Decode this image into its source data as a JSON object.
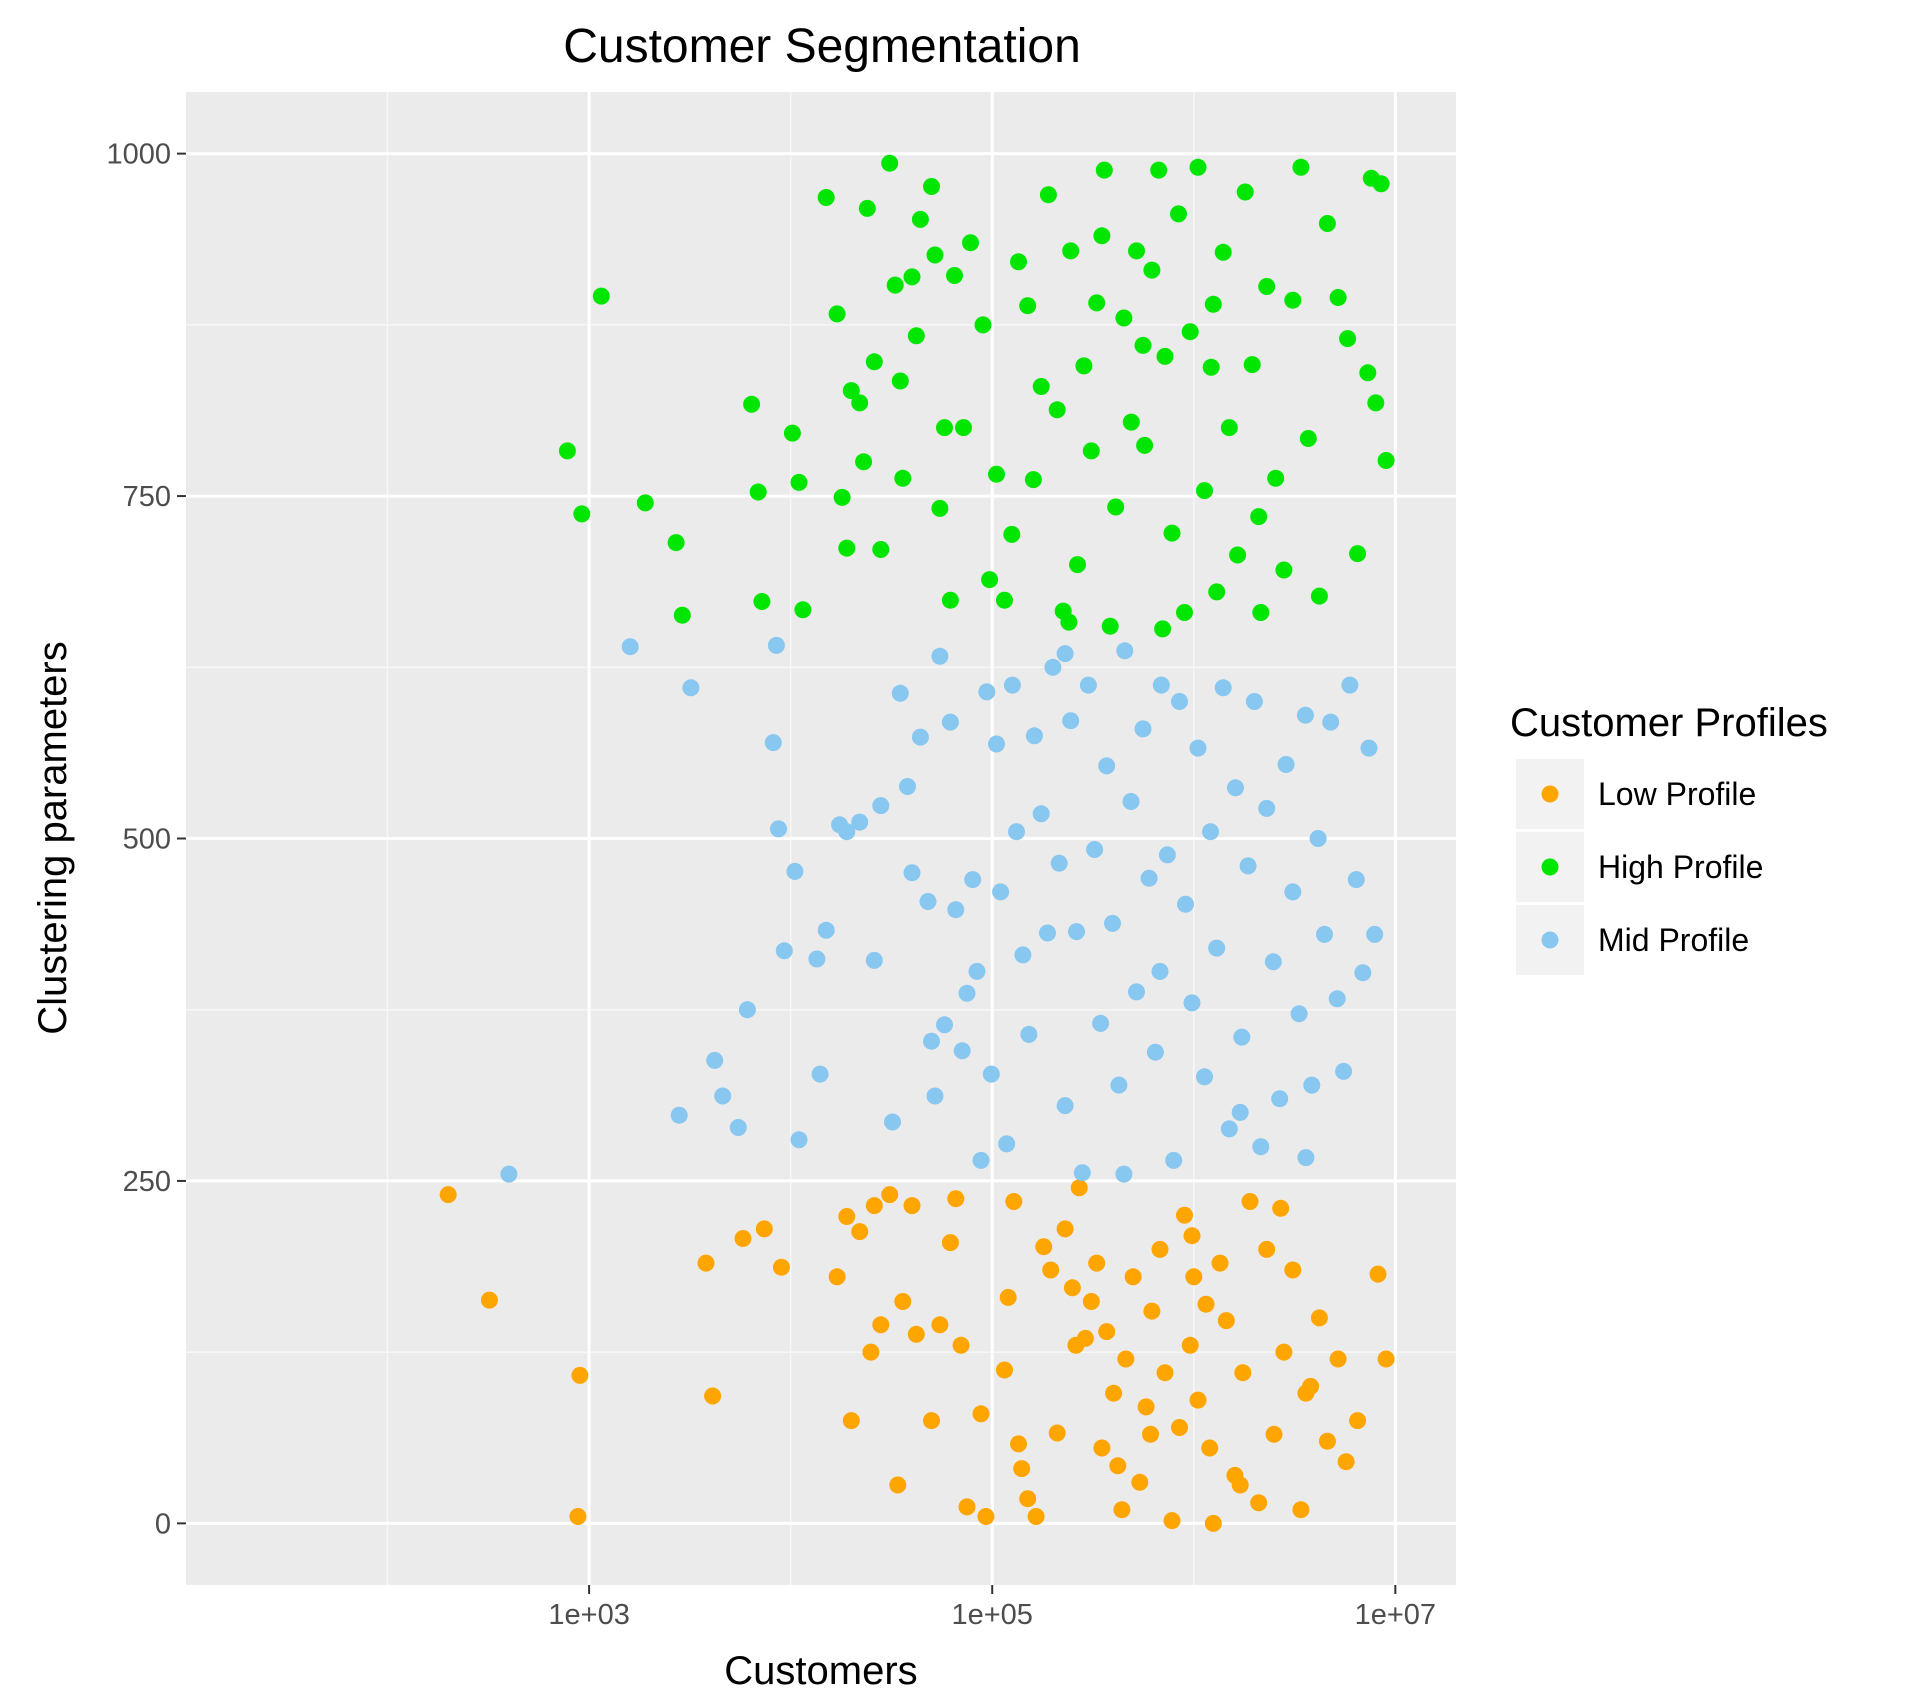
{
  "chart_data": {
    "type": "scatter",
    "title": "Customer Segmentation",
    "xlabel": "Customers",
    "ylabel": "Clustering parameters",
    "x_scale": "log10",
    "xlim": [
      10,
      20000000
    ],
    "ylim": [
      -45,
      1045
    ],
    "x_ticks": [
      {
        "value": 1000,
        "label": "1e+03"
      },
      {
        "value": 100000,
        "label": "1e+05"
      },
      {
        "value": 10000000,
        "label": "1e+07"
      }
    ],
    "y_ticks": [
      {
        "value": 0,
        "label": "0"
      },
      {
        "value": 250,
        "label": "250"
      },
      {
        "value": 500,
        "label": "500"
      },
      {
        "value": 750,
        "label": "750"
      },
      {
        "value": 1000,
        "label": "1000"
      }
    ],
    "grid": true,
    "background": "#ebebeb",
    "legend": {
      "title": "Customer Profiles",
      "position": "right"
    },
    "series": [
      {
        "name": "Low Profile",
        "color": "#ffa500",
        "points": [
          [
            200,
            240
          ],
          [
            320,
            163
          ],
          [
            900,
            108
          ],
          [
            880,
            5
          ],
          [
            3800,
            190
          ],
          [
            4100,
            93
          ],
          [
            5800,
            208
          ],
          [
            7400,
            215
          ],
          [
            9000,
            187
          ],
          [
            17000,
            180
          ],
          [
            19000,
            224
          ],
          [
            20000,
            75
          ],
          [
            22000,
            213
          ],
          [
            25000,
            125
          ],
          [
            26000,
            232
          ],
          [
            28000,
            145
          ],
          [
            31000,
            240
          ],
          [
            34000,
            28
          ],
          [
            36000,
            162
          ],
          [
            40000,
            232
          ],
          [
            42000,
            138
          ],
          [
            50000,
            75
          ],
          [
            55000,
            145
          ],
          [
            62000,
            205
          ],
          [
            66000,
            237
          ],
          [
            70000,
            130
          ],
          [
            88000,
            80
          ],
          [
            93000,
            5
          ],
          [
            115000,
            112
          ],
          [
            120000,
            165
          ],
          [
            128000,
            235
          ],
          [
            135000,
            58
          ],
          [
            150000,
            18
          ],
          [
            165000,
            5
          ],
          [
            180000,
            202
          ],
          [
            195000,
            185
          ],
          [
            210000,
            66
          ],
          [
            230000,
            215
          ],
          [
            250000,
            172
          ],
          [
            270000,
            245
          ],
          [
            290000,
            135
          ],
          [
            310000,
            162
          ],
          [
            330000,
            190
          ],
          [
            350000,
            55
          ],
          [
            370000,
            140
          ],
          [
            400000,
            95
          ],
          [
            420000,
            42
          ],
          [
            460000,
            120
          ],
          [
            500000,
            180
          ],
          [
            540000,
            30
          ],
          [
            580000,
            85
          ],
          [
            620000,
            155
          ],
          [
            680000,
            200
          ],
          [
            720000,
            110
          ],
          [
            780000,
            2
          ],
          [
            850000,
            70
          ],
          [
            900000,
            225
          ],
          [
            960000,
            130
          ],
          [
            1050000,
            90
          ],
          [
            1150000,
            160
          ],
          [
            1250000,
            0
          ],
          [
            1350000,
            190
          ],
          [
            1450000,
            148
          ],
          [
            1600000,
            35
          ],
          [
            1750000,
            110
          ],
          [
            1900000,
            235
          ],
          [
            2100000,
            15
          ],
          [
            2300000,
            200
          ],
          [
            2500000,
            65
          ],
          [
            2800000,
            125
          ],
          [
            3100000,
            185
          ],
          [
            3400000,
            10
          ],
          [
            3800000,
            100
          ],
          [
            4200000,
            150
          ],
          [
            4600000,
            60
          ],
          [
            5200000,
            120
          ],
          [
            5700000,
            45
          ],
          [
            6500000,
            75
          ],
          [
            8200000,
            182
          ],
          [
            9000000,
            120
          ],
          [
            140000,
            40
          ],
          [
            260000,
            130
          ],
          [
            440000,
            10
          ],
          [
            980000,
            210
          ],
          [
            1200000,
            55
          ],
          [
            2700000,
            230
          ],
          [
            3600000,
            95
          ],
          [
            610000,
            65
          ],
          [
            1700000,
            28
          ],
          [
            75000,
            12
          ],
          [
            1000000,
            180
          ]
        ]
      },
      {
        "name": "High Profile",
        "color": "#00e600",
        "points": [
          [
            1150,
            896
          ],
          [
            780,
            783
          ],
          [
            920,
            737
          ],
          [
            1900,
            745
          ],
          [
            2700,
            716
          ],
          [
            2900,
            663
          ],
          [
            6400,
            817
          ],
          [
            6900,
            753
          ],
          [
            7200,
            673
          ],
          [
            10200,
            796
          ],
          [
            11000,
            760
          ],
          [
            11500,
            667
          ],
          [
            15000,
            968
          ],
          [
            17000,
            883
          ],
          [
            18000,
            749
          ],
          [
            19000,
            712
          ],
          [
            20000,
            827
          ],
          [
            22000,
            818
          ],
          [
            23000,
            775
          ],
          [
            24000,
            960
          ],
          [
            26000,
            848
          ],
          [
            28000,
            711
          ],
          [
            31000,
            993
          ],
          [
            33000,
            904
          ],
          [
            35000,
            834
          ],
          [
            36000,
            763
          ],
          [
            40000,
            910
          ],
          [
            42000,
            867
          ],
          [
            44000,
            952
          ],
          [
            50000,
            976
          ],
          [
            52000,
            926
          ],
          [
            55000,
            741
          ],
          [
            58000,
            800
          ],
          [
            62000,
            674
          ],
          [
            65000,
            911
          ],
          [
            72000,
            800
          ],
          [
            78000,
            935
          ],
          [
            90000,
            875
          ],
          [
            97000,
            689
          ],
          [
            105000,
            766
          ],
          [
            115000,
            674
          ],
          [
            125000,
            722
          ],
          [
            135000,
            921
          ],
          [
            150000,
            889
          ],
          [
            160000,
            762
          ],
          [
            175000,
            830
          ],
          [
            190000,
            970
          ],
          [
            210000,
            813
          ],
          [
            225000,
            666
          ],
          [
            245000,
            929
          ],
          [
            265000,
            700
          ],
          [
            285000,
            845
          ],
          [
            310000,
            783
          ],
          [
            330000,
            891
          ],
          [
            360000,
            988
          ],
          [
            385000,
            655
          ],
          [
            410000,
            742
          ],
          [
            450000,
            880
          ],
          [
            490000,
            804
          ],
          [
            520000,
            929
          ],
          [
            570000,
            787
          ],
          [
            620000,
            915
          ],
          [
            670000,
            988
          ],
          [
            720000,
            852
          ],
          [
            780000,
            723
          ],
          [
            840000,
            956
          ],
          [
            900000,
            665
          ],
          [
            960000,
            870
          ],
          [
            1050000,
            990
          ],
          [
            1130000,
            754
          ],
          [
            1220000,
            844
          ],
          [
            1300000,
            680
          ],
          [
            1400000,
            928
          ],
          [
            1500000,
            800
          ],
          [
            1650000,
            707
          ],
          [
            1800000,
            972
          ],
          [
            1950000,
            846
          ],
          [
            2150000,
            665
          ],
          [
            2300000,
            903
          ],
          [
            2550000,
            763
          ],
          [
            2800000,
            696
          ],
          [
            3100000,
            893
          ],
          [
            3400000,
            990
          ],
          [
            3700000,
            792
          ],
          [
            4200000,
            677
          ],
          [
            4600000,
            949
          ],
          [
            5200000,
            895
          ],
          [
            5800000,
            865
          ],
          [
            6500000,
            708
          ],
          [
            7300000,
            840
          ],
          [
            8000000,
            818
          ],
          [
            9000000,
            776
          ],
          [
            8500000,
            978
          ],
          [
            7600000,
            982
          ],
          [
            240000,
            658
          ],
          [
            700000,
            653
          ],
          [
            1250000,
            890
          ],
          [
            2100000,
            735
          ],
          [
            350000,
            940
          ],
          [
            560000,
            860
          ]
        ]
      },
      {
        "name": "Mid Profile",
        "color": "#87c7f0",
        "points": [
          [
            400,
            255
          ],
          [
            1600,
            640
          ],
          [
            3200,
            610
          ],
          [
            2800,
            298
          ],
          [
            4200,
            338
          ],
          [
            4600,
            312
          ],
          [
            5500,
            289
          ],
          [
            6100,
            375
          ],
          [
            8700,
            507
          ],
          [
            9300,
            418
          ],
          [
            10500,
            476
          ],
          [
            11000,
            280
          ],
          [
            8500,
            641
          ],
          [
            8200,
            570
          ],
          [
            13500,
            412
          ],
          [
            14000,
            328
          ],
          [
            15000,
            433
          ],
          [
            17500,
            510
          ],
          [
            19000,
            505
          ],
          [
            22000,
            512
          ],
          [
            26000,
            411
          ],
          [
            28000,
            524
          ],
          [
            32000,
            293
          ],
          [
            35000,
            606
          ],
          [
            38000,
            538
          ],
          [
            40000,
            475
          ],
          [
            44000,
            574
          ],
          [
            48000,
            454
          ],
          [
            50000,
            352
          ],
          [
            52000,
            312
          ],
          [
            55000,
            633
          ],
          [
            58000,
            364
          ],
          [
            62000,
            585
          ],
          [
            66000,
            448
          ],
          [
            71000,
            345
          ],
          [
            75000,
            387
          ],
          [
            80000,
            470
          ],
          [
            84000,
            403
          ],
          [
            88000,
            265
          ],
          [
            94000,
            607
          ],
          [
            99000,
            328
          ],
          [
            105000,
            569
          ],
          [
            110000,
            461
          ],
          [
            118000,
            277
          ],
          [
            126000,
            612
          ],
          [
            132000,
            505
          ],
          [
            142000,
            415
          ],
          [
            152000,
            357
          ],
          [
            162000,
            575
          ],
          [
            175000,
            518
          ],
          [
            188000,
            431
          ],
          [
            200000,
            625
          ],
          [
            215000,
            482
          ],
          [
            230000,
            305
          ],
          [
            245000,
            586
          ],
          [
            262000,
            432
          ],
          [
            280000,
            256
          ],
          [
            300000,
            612
          ],
          [
            322000,
            492
          ],
          [
            345000,
            365
          ],
          [
            370000,
            553
          ],
          [
            395000,
            438
          ],
          [
            425000,
            320
          ],
          [
            455000,
            637
          ],
          [
            488000,
            527
          ],
          [
            520000,
            388
          ],
          [
            560000,
            580
          ],
          [
            600000,
            471
          ],
          [
            645000,
            344
          ],
          [
            690000,
            612
          ],
          [
            740000,
            488
          ],
          [
            795000,
            265
          ],
          [
            850000,
            600
          ],
          [
            910000,
            452
          ],
          [
            980000,
            380
          ],
          [
            1050000,
            566
          ],
          [
            1130000,
            326
          ],
          [
            1210000,
            505
          ],
          [
            1300000,
            420
          ],
          [
            1400000,
            610
          ],
          [
            1500000,
            288
          ],
          [
            1610000,
            537
          ],
          [
            1730000,
            355
          ],
          [
            1860000,
            480
          ],
          [
            2000000,
            600
          ],
          [
            2150000,
            275
          ],
          [
            2300000,
            522
          ],
          [
            2480000,
            410
          ],
          [
            2670000,
            310
          ],
          [
            2870000,
            554
          ],
          [
            3100000,
            461
          ],
          [
            3330000,
            372
          ],
          [
            3580000,
            590
          ],
          [
            3850000,
            320
          ],
          [
            4140000,
            500
          ],
          [
            4450000,
            430
          ],
          [
            4780000,
            585
          ],
          [
            5150000,
            383
          ],
          [
            5540000,
            330
          ],
          [
            5950000,
            612
          ],
          [
            6400000,
            470
          ],
          [
            6900000,
            402
          ],
          [
            7400000,
            566
          ],
          [
            7900000,
            430
          ],
          [
            3600000,
            267
          ],
          [
            1700000,
            300
          ],
          [
            680000,
            403
          ],
          [
            450000,
            255
          ],
          [
            230000,
            635
          ]
        ]
      }
    ]
  }
}
